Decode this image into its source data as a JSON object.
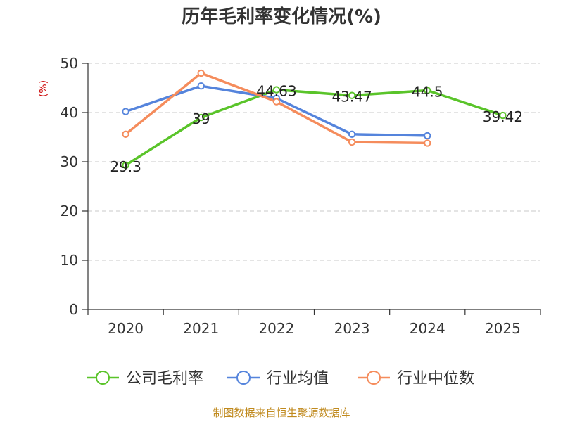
{
  "chart_data": {
    "type": "line",
    "title": "历年毛利率变化情况(%)",
    "ylabel": "(%)",
    "categories": [
      "2020",
      "2021",
      "2022",
      "2023",
      "2024",
      "2025"
    ],
    "ylim": [
      0,
      50
    ],
    "yticks": [
      0,
      10,
      20,
      30,
      40,
      50
    ],
    "grid": true,
    "legend_position": "bottom",
    "series": [
      {
        "name": "公司毛利率",
        "color": "#5ac42a",
        "values": [
          29.3,
          39,
          44.63,
          43.47,
          44.5,
          39.42
        ],
        "labels": [
          "29.3",
          "39",
          "44.63",
          "43.47",
          "44.5",
          "39.42"
        ]
      },
      {
        "name": "行业均值",
        "color": "#5584dc",
        "values": [
          40.2,
          45.4,
          42.9,
          35.6,
          35.3,
          null
        ]
      },
      {
        "name": "行业中位数",
        "color": "#f58c5c",
        "values": [
          35.6,
          48.0,
          42.2,
          34.0,
          33.8,
          null
        ]
      }
    ],
    "source": "制图数据来自恒生聚源数据库"
  }
}
